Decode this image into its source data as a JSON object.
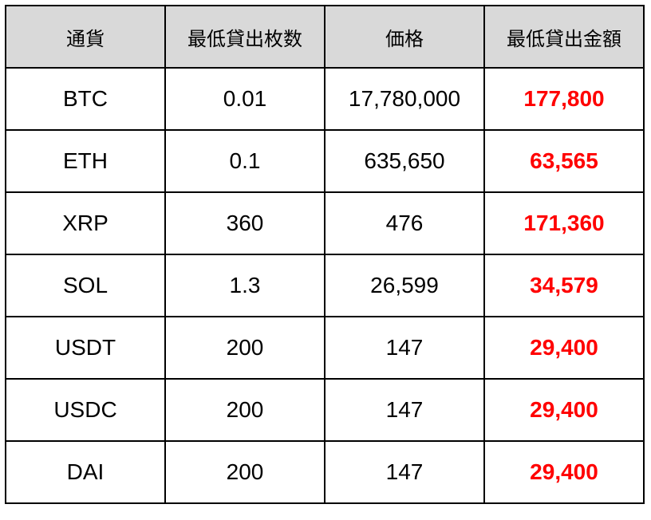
{
  "table": {
    "headers": [
      "通貨",
      "最低貸出枚数",
      "価格",
      "最低貸出金額"
    ],
    "rows": [
      {
        "currency": "BTC",
        "min_qty": "0.01",
        "price": "17,780,000",
        "min_amount": "177,800"
      },
      {
        "currency": "ETH",
        "min_qty": "0.1",
        "price": "635,650",
        "min_amount": "63,565"
      },
      {
        "currency": "XRP",
        "min_qty": "360",
        "price": "476",
        "min_amount": "171,360"
      },
      {
        "currency": "SOL",
        "min_qty": "1.3",
        "price": "26,599",
        "min_amount": "34,579"
      },
      {
        "currency": "USDT",
        "min_qty": "200",
        "price": "147",
        "min_amount": "29,400"
      },
      {
        "currency": "USDC",
        "min_qty": "200",
        "price": "147",
        "min_amount": "29,400"
      },
      {
        "currency": "DAI",
        "min_qty": "200",
        "price": "147",
        "min_amount": "29,400"
      }
    ]
  },
  "colors": {
    "header_bg": "#d9d9d9",
    "amount_text": "#ff0000",
    "border": "#000000"
  }
}
